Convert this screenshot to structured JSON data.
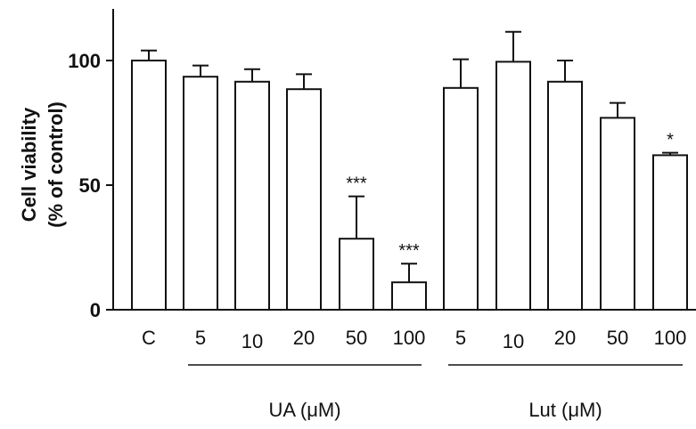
{
  "chart_data": {
    "type": "bar",
    "ylabel_line1": "Cell viability",
    "ylabel_line2": "(% of control)",
    "ylim": [
      0,
      120
    ],
    "yticks": [
      "0",
      "50",
      "100"
    ],
    "categories": [
      "C",
      "5",
      "10",
      "20",
      "50",
      "100",
      "5",
      "10",
      "20",
      "50",
      "100"
    ],
    "values": [
      100,
      93.5,
      91.5,
      88.5,
      28.5,
      11,
      89,
      99.5,
      91.5,
      77,
      62
    ],
    "errors": [
      4,
      4.5,
      5,
      6,
      17,
      7.5,
      11.5,
      12,
      8.5,
      6,
      1
    ],
    "significance": [
      "",
      "",
      "",
      "",
      "***",
      "***",
      "",
      "",
      "",
      "",
      "*"
    ],
    "groups": [
      {
        "label": "UA (μM)",
        "from": 1,
        "to": 5
      },
      {
        "label": "Lut (μM)",
        "from": 6,
        "to": 10
      }
    ],
    "grid": false,
    "legend": "none"
  }
}
